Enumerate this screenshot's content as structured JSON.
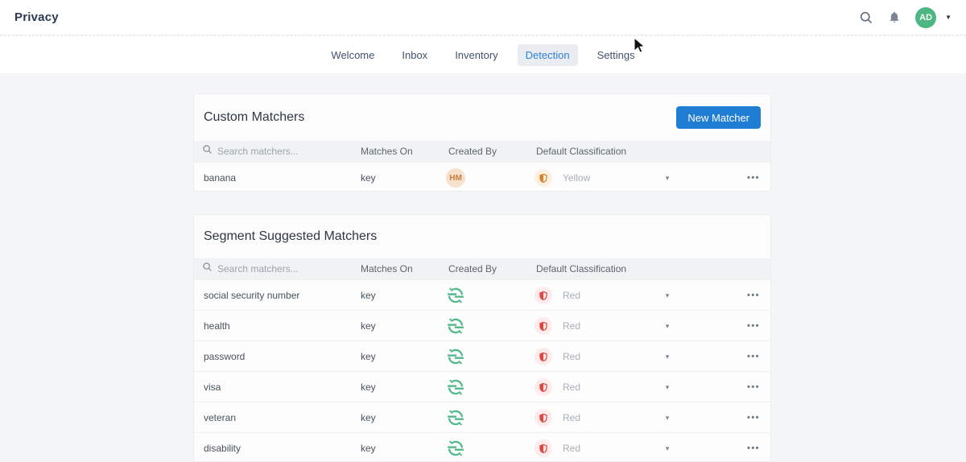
{
  "topbar": {
    "title": "Privacy",
    "avatar_initials": "AD"
  },
  "nav": {
    "tabs": [
      {
        "label": "Welcome",
        "active": false
      },
      {
        "label": "Inbox",
        "active": false
      },
      {
        "label": "Inventory",
        "active": false
      },
      {
        "label": "Detection",
        "active": true
      },
      {
        "label": "Settings",
        "active": false
      }
    ]
  },
  "custom_matchers": {
    "title": "Custom Matchers",
    "new_button_label": "New Matcher",
    "search_placeholder": "Search matchers...",
    "columns": [
      "Matches On",
      "Created By",
      "Default Classification"
    ],
    "rows": [
      {
        "name": "banana",
        "matches_on": "key",
        "created_by": "HM",
        "classification": "Yellow"
      }
    ]
  },
  "suggested_matchers": {
    "title": "Segment Suggested Matchers",
    "search_placeholder": "Search matchers...",
    "columns": [
      "Matches On",
      "Created By",
      "Default Classification"
    ],
    "rows": [
      {
        "name": "social security number",
        "matches_on": "key",
        "created_by": "Segment",
        "classification": "Red"
      },
      {
        "name": "health",
        "matches_on": "key",
        "created_by": "Segment",
        "classification": "Red"
      },
      {
        "name": "password",
        "matches_on": "key",
        "created_by": "Segment",
        "classification": "Red"
      },
      {
        "name": "visa",
        "matches_on": "key",
        "created_by": "Segment",
        "classification": "Red"
      },
      {
        "name": "veteran",
        "matches_on": "key",
        "created_by": "Segment",
        "classification": "Red"
      },
      {
        "name": "disability",
        "matches_on": "key",
        "created_by": "Segment",
        "classification": "Red"
      }
    ]
  },
  "colors": {
    "accent_blue": "#1f7ed3",
    "active_tab_blue": "#2f80d9",
    "avatar_green": "#4cb783",
    "segment_green": "#52b98b",
    "classification_yellow": "#d9822b",
    "classification_red": "#e2453f"
  }
}
